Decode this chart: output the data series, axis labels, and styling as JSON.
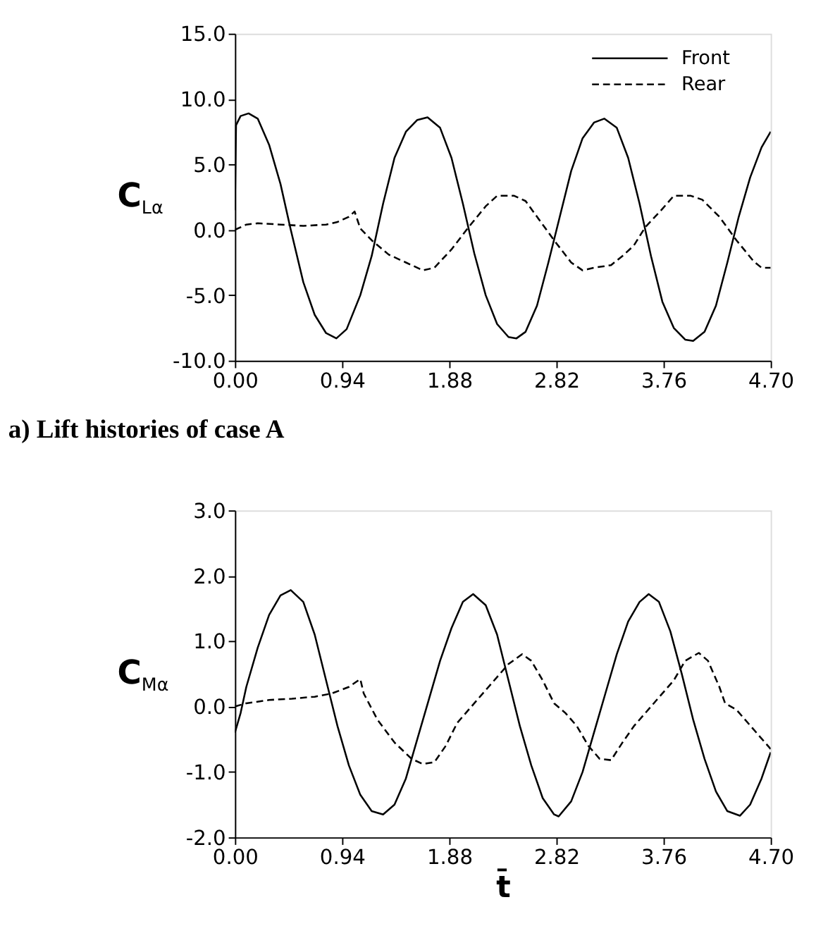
{
  "chart_data": [
    {
      "type": "line",
      "ylabel": "C$_{Lα}$",
      "annotations": [
        "a) Lift histories of case A"
      ],
      "legend": "top right",
      "grid": false,
      "xlim": [
        0,
        4.7
      ],
      "xticks": [
        {
          "value": 0,
          "label": "0.00"
        },
        {
          "value": 0.94,
          "label": "0.94"
        },
        {
          "value": 1.88,
          "label": "1.88"
        },
        {
          "value": 2.82,
          "label": "2.82"
        },
        {
          "value": 3.76,
          "label": "3.76"
        },
        {
          "value": 4.7,
          "label": "4.70"
        }
      ],
      "ylim": [
        -10,
        15
      ],
      "yticks": [
        {
          "value": -10,
          "label": "-10.0"
        },
        {
          "value": -5,
          "label": "-5.0"
        },
        {
          "value": 0,
          "label": "0.0"
        },
        {
          "value": 5,
          "label": "5.0"
        },
        {
          "value": 10,
          "label": "10.0"
        },
        {
          "value": 15,
          "label": "15.0"
        }
      ],
      "series": [
        {
          "name": "Front",
          "color": "#000000",
          "line_style": "solid",
          "x": [
            0,
            0.01,
            0.05,
            0.12,
            0.2,
            0.3,
            0.4,
            0.49,
            0.6,
            0.7,
            0.8,
            0.89,
            0.98,
            1.1,
            1.2,
            1.3,
            1.4,
            1.5,
            1.6,
            1.69,
            1.8,
            1.9,
            2.0,
            2.1,
            2.2,
            2.3,
            2.4,
            2.47,
            2.55,
            2.65,
            2.75,
            2.85,
            2.95,
            3.05,
            3.15,
            3.24,
            3.35,
            3.45,
            3.55,
            3.65,
            3.75,
            3.85,
            3.95,
            4.02,
            4.12,
            4.22,
            4.32,
            4.42,
            4.52,
            4.62,
            4.7
          ],
          "values": [
            1.5,
            8.0,
            8.7,
            8.9,
            8.5,
            6.5,
            3.5,
            0,
            -4,
            -6.5,
            -7.9,
            -8.3,
            -7.6,
            -5,
            -2,
            2,
            5.5,
            7.5,
            8.4,
            8.6,
            7.8,
            5.5,
            2,
            -1.8,
            -5,
            -7.2,
            -8.2,
            -8.3,
            -7.8,
            -5.8,
            -2.5,
            1,
            4.5,
            7,
            8.2,
            8.5,
            7.8,
            5.5,
            2,
            -2,
            -5.5,
            -7.5,
            -8.4,
            -8.5,
            -7.8,
            -5.8,
            -2.5,
            1,
            4,
            6.3,
            7.5
          ]
        },
        {
          "name": "Rear",
          "color": "#000000",
          "line_style": "dashed",
          "x": [
            0,
            0.1,
            0.2,
            0.4,
            0.6,
            0.8,
            0.9,
            1.0,
            1.05,
            1.1,
            1.2,
            1.35,
            1.5,
            1.65,
            1.75,
            1.9,
            2.05,
            2.2,
            2.3,
            2.45,
            2.55,
            2.65,
            2.8,
            2.95,
            3.05,
            3.15,
            3.3,
            3.4,
            3.5,
            3.6,
            3.75,
            3.85,
            4.0,
            4.1,
            4.25,
            4.4,
            4.55,
            4.62,
            4.7
          ],
          "values": [
            0,
            0.4,
            0.5,
            0.4,
            0.3,
            0.4,
            0.6,
            1.0,
            1.4,
            0.1,
            -0.8,
            -1.9,
            -2.5,
            -3.1,
            -2.9,
            -1.5,
            0.2,
            1.8,
            2.6,
            2.6,
            2.2,
            1,
            -0.8,
            -2.5,
            -3.1,
            -2.9,
            -2.7,
            -2,
            -1.2,
            0.2,
            1.6,
            2.6,
            2.6,
            2.3,
            1,
            -0.8,
            -2.4,
            -2.9,
            -2.9
          ]
        }
      ]
    },
    {
      "type": "line",
      "ylabel": "C$_{Mα}$",
      "xlabel": "t̄",
      "legend": false,
      "grid": false,
      "xlim": [
        0,
        4.7
      ],
      "xticks": [
        {
          "value": 0,
          "label": "0.00"
        },
        {
          "value": 0.94,
          "label": "0.94"
        },
        {
          "value": 1.88,
          "label": "1.88"
        },
        {
          "value": 2.82,
          "label": "2.82"
        },
        {
          "value": 3.76,
          "label": "3.76"
        },
        {
          "value": 4.7,
          "label": "4.70"
        }
      ],
      "ylim": [
        -2,
        3
      ],
      "yticks": [
        {
          "value": -2,
          "label": "-2.0"
        },
        {
          "value": -1,
          "label": "-1.0"
        },
        {
          "value": 0,
          "label": "0.0"
        },
        {
          "value": 1,
          "label": "1.0"
        },
        {
          "value": 2,
          "label": "2.0"
        },
        {
          "value": 3,
          "label": "3.0"
        }
      ],
      "series": [
        {
          "color": "#000000",
          "line_style": "solid",
          "x": [
            0,
            0.05,
            0.1,
            0.2,
            0.3,
            0.4,
            0.49,
            0.6,
            0.7,
            0.8,
            0.9,
            1.0,
            1.1,
            1.2,
            1.3,
            1.4,
            1.5,
            1.6,
            1.7,
            1.8,
            1.9,
            2.0,
            2.09,
            2.2,
            2.3,
            2.4,
            2.5,
            2.6,
            2.7,
            2.8,
            2.84,
            2.95,
            3.05,
            3.15,
            3.25,
            3.35,
            3.45,
            3.55,
            3.63,
            3.72,
            3.82,
            3.92,
            4.02,
            4.12,
            4.22,
            4.32,
            4.43,
            4.52,
            4.62,
            4.7
          ],
          "values": [
            -0.4,
            -0.1,
            0.3,
            0.9,
            1.4,
            1.7,
            1.78,
            1.6,
            1.1,
            0.4,
            -0.3,
            -0.9,
            -1.35,
            -1.6,
            -1.65,
            -1.5,
            -1.1,
            -0.5,
            0.1,
            0.7,
            1.2,
            1.6,
            1.72,
            1.55,
            1.1,
            0.4,
            -0.3,
            -0.9,
            -1.4,
            -1.65,
            -1.68,
            -1.45,
            -1.0,
            -0.4,
            0.2,
            0.8,
            1.3,
            1.6,
            1.72,
            1.6,
            1.15,
            0.5,
            -0.2,
            -0.8,
            -1.3,
            -1.6,
            -1.67,
            -1.5,
            -1.1,
            -0.7
          ]
        },
        {
          "color": "#000000",
          "line_style": "dashed",
          "x": [
            0,
            0.1,
            0.3,
            0.5,
            0.7,
            0.85,
            1.0,
            1.1,
            1.13,
            1.25,
            1.4,
            1.55,
            1.65,
            1.75,
            1.85,
            1.95,
            2.1,
            2.25,
            2.4,
            2.52,
            2.6,
            2.7,
            2.8,
            2.9,
            3.0,
            3.1,
            3.2,
            3.3,
            3.4,
            3.5,
            3.6,
            3.7,
            3.85,
            3.95,
            4.07,
            4.15,
            4.25,
            4.3,
            4.4,
            4.5,
            4.6,
            4.7
          ],
          "values": [
            0,
            0.05,
            0.1,
            0.12,
            0.15,
            0.2,
            0.3,
            0.42,
            0.2,
            -0.2,
            -0.55,
            -0.8,
            -0.88,
            -0.85,
            -0.6,
            -0.25,
            0.05,
            0.35,
            0.65,
            0.8,
            0.7,
            0.4,
            0.05,
            -0.1,
            -0.3,
            -0.6,
            -0.8,
            -0.82,
            -0.55,
            -0.3,
            -0.1,
            0.1,
            0.4,
            0.7,
            0.82,
            0.7,
            0.3,
            0.05,
            -0.05,
            -0.25,
            -0.45,
            -0.65
          ]
        }
      ]
    }
  ]
}
